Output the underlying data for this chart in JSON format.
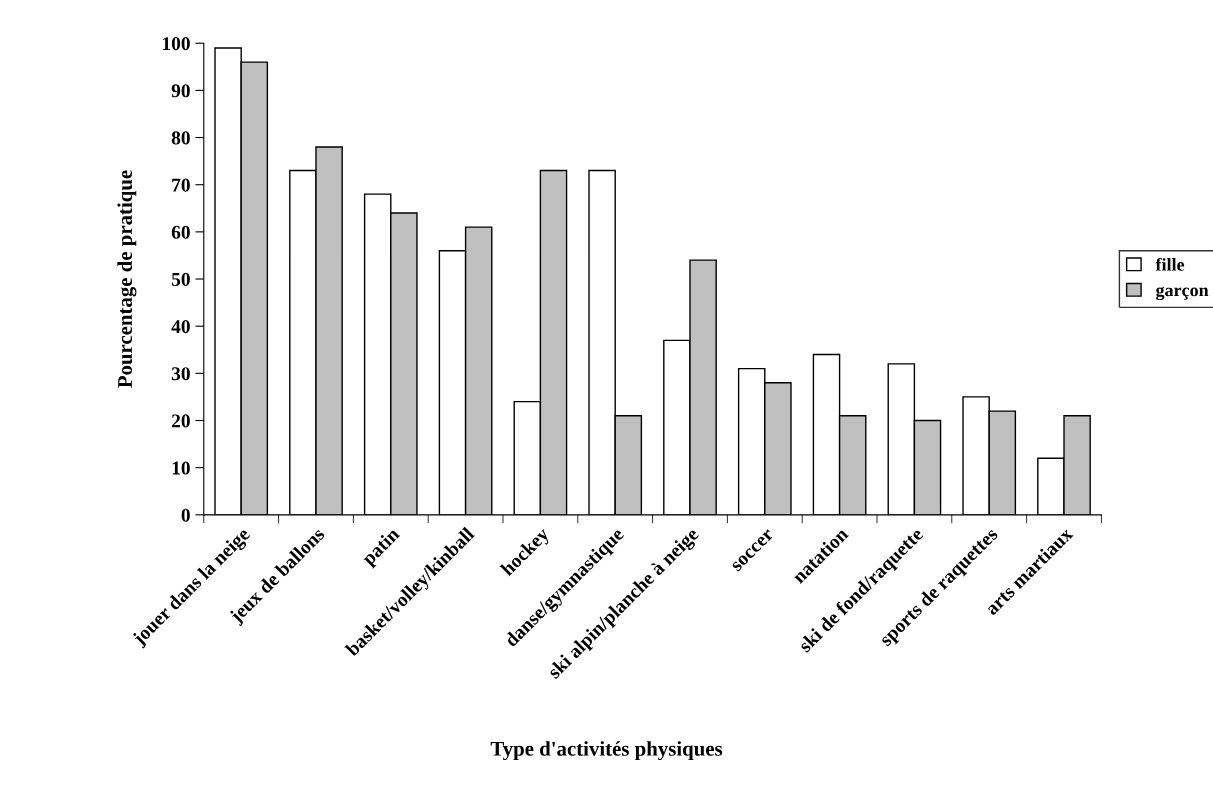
{
  "chart_data": {
    "type": "bar",
    "xlabel": "Type d'activités physiques",
    "ylabel": "Pourcentage de pratique",
    "categories": [
      "jouer dans la neige",
      "jeux de ballons",
      "patin",
      "basket/volley/kinball",
      "hockey",
      "danse/gymnastique",
      "ski alpin/planche à neige",
      "soccer",
      "natation",
      "ski de fond/raquette",
      "sports de raquettes",
      "arts martiaux"
    ],
    "series": [
      {
        "name": "fille",
        "color": "#ffffff",
        "values": [
          99,
          73,
          68,
          56,
          24,
          73,
          37,
          31,
          34,
          32,
          25,
          12
        ]
      },
      {
        "name": "garçon",
        "color": "#c0c0c0",
        "values": [
          96,
          78,
          64,
          61,
          73,
          21,
          54,
          28,
          21,
          20,
          22,
          21
        ]
      }
    ],
    "ylim": [
      0,
      100
    ],
    "yticks": [
      0,
      10,
      20,
      30,
      40,
      50,
      60,
      70,
      80,
      90,
      100
    ],
    "grid": false,
    "legend": "right"
  }
}
